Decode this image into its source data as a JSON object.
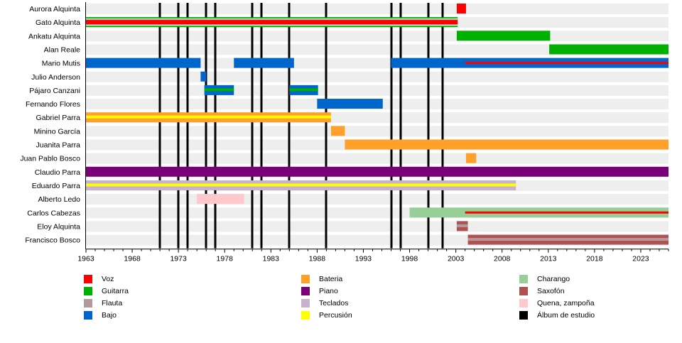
{
  "chart_data": {
    "type": "timeline",
    "title": "",
    "x_range": [
      1963,
      2026
    ],
    "xticks": [
      1963,
      1968,
      1973,
      1978,
      1983,
      1988,
      1993,
      1998,
      2003,
      2008,
      2013,
      2018,
      2023
    ],
    "grid": false,
    "legend_placement": "bottom",
    "instruments": {
      "voz": {
        "label": "Voz",
        "color": "#ff0000"
      },
      "guitarra": {
        "label": "Guitarra",
        "color": "#00b000"
      },
      "flauta": {
        "label": "Flauta",
        "color": "#b39999"
      },
      "bajo": {
        "label": "Bajo",
        "color": "#0066cc"
      },
      "bateria": {
        "label": "Bateria",
        "color": "#ffa02a"
      },
      "piano": {
        "label": "Piano",
        "color": "#7a0078"
      },
      "teclados": {
        "label": "Teclados",
        "color": "#c8b1cf"
      },
      "percusion": {
        "label": "Percusión",
        "color": "#ffff00"
      },
      "charango": {
        "label": "Charango",
        "color": "#98cf98"
      },
      "saxofon": {
        "label": "Saxofón",
        "color": "#b05050"
      },
      "quena": {
        "label": "Quena, zampoña",
        "color": "#ffc8cc"
      },
      "album": {
        "label": "Álbum de estudio",
        "color": "#000000"
      }
    },
    "legend_columns": [
      [
        "voz",
        "guitarra",
        "flauta",
        "bajo"
      ],
      [
        "bateria",
        "piano",
        "teclados",
        "percusion"
      ],
      [
        "charango",
        "saxofon",
        "quena",
        "album"
      ]
    ],
    "members": [
      {
        "name": "Aurora Alquinta",
        "bars": [
          {
            "inst": "voz",
            "from": 2003.1,
            "to": 2004.1
          }
        ]
      },
      {
        "name": "Gato Alquinta",
        "bars": [
          {
            "inst": "guitarra",
            "from": 1963,
            "to": 2003.2,
            "stripes": [
              "flauta",
              "voz"
            ]
          }
        ]
      },
      {
        "name": "Ankatu Alquinta",
        "bars": [
          {
            "inst": "guitarra",
            "from": 2003.1,
            "to": 2013.2
          }
        ]
      },
      {
        "name": "Alan Reale",
        "bars": [
          {
            "inst": "guitarra",
            "from": 2013.1,
            "to": 2026
          }
        ]
      },
      {
        "name": "Mario Mutis",
        "bars": [
          {
            "inst": "bajo",
            "from": 1963,
            "to": 1975.4
          },
          {
            "inst": "bajo",
            "from": 1979,
            "to": 1985.5
          },
          {
            "inst": "bajo",
            "from": 1996.0,
            "to": 2026
          },
          {
            "inst": "voz",
            "from": 2004.0,
            "to": 2026,
            "stripe": true
          }
        ]
      },
      {
        "name": "Julio Anderson",
        "bars": [
          {
            "inst": "bajo",
            "from": 1975.4,
            "to": 1976.0
          }
        ]
      },
      {
        "name": "Pájaro Canzani",
        "bars": [
          {
            "inst": "bajo",
            "from": 1975.8,
            "to": 1979.0,
            "stripes": [
              "guitarra"
            ]
          },
          {
            "inst": "bajo",
            "from": 1985.0,
            "to": 1988.1,
            "stripes": [
              "guitarra"
            ]
          }
        ]
      },
      {
        "name": "Fernando Flores",
        "bars": [
          {
            "inst": "bajo",
            "from": 1988.0,
            "to": 1995.1
          }
        ]
      },
      {
        "name": "Gabriel Parra",
        "bars": [
          {
            "inst": "bateria",
            "from": 1963,
            "to": 1989.5,
            "stripes": [
              "percusion"
            ]
          }
        ]
      },
      {
        "name": "Minino García",
        "bars": [
          {
            "inst": "bateria",
            "from": 1989.5,
            "to": 1991.0
          }
        ]
      },
      {
        "name": "Juanita Parra",
        "bars": [
          {
            "inst": "bateria",
            "from": 1991.0,
            "to": 2026
          }
        ]
      },
      {
        "name": "Juan Pablo Bosco",
        "bars": [
          {
            "inst": "bateria",
            "from": 2004.1,
            "to": 2005.2
          }
        ]
      },
      {
        "name": "Claudio Parra",
        "bars": [
          {
            "inst": "piano",
            "from": 1963,
            "to": 2026
          }
        ]
      },
      {
        "name": "Eduardo Parra",
        "bars": [
          {
            "inst": "teclados",
            "from": 1963,
            "to": 2009.5,
            "stripes": [
              "percusion"
            ]
          }
        ]
      },
      {
        "name": "Alberto Ledo",
        "bars": [
          {
            "inst": "quena",
            "from": 1975.0,
            "to": 1980.1
          }
        ]
      },
      {
        "name": "Carlos Cabezas",
        "bars": [
          {
            "inst": "charango",
            "from": 1998.0,
            "to": 2026
          },
          {
            "inst": "voz",
            "from": 2004.0,
            "to": 2026,
            "stripe": true
          }
        ]
      },
      {
        "name": "Eloy Alquinta",
        "bars": [
          {
            "inst": "saxofon",
            "from": 2003.1,
            "to": 2004.3,
            "stripes": [
              "flauta"
            ]
          }
        ]
      },
      {
        "name": "Francisco Bosco",
        "bars": [
          {
            "inst": "saxofon",
            "from": 2004.3,
            "to": 2026,
            "stripes": [
              "flauta"
            ]
          }
        ]
      }
    ],
    "albums": [
      1971,
      1973,
      1974,
      1976,
      1977,
      1981,
      1982,
      1985,
      1989,
      1996,
      1997,
      2000,
      2001.6
    ]
  }
}
